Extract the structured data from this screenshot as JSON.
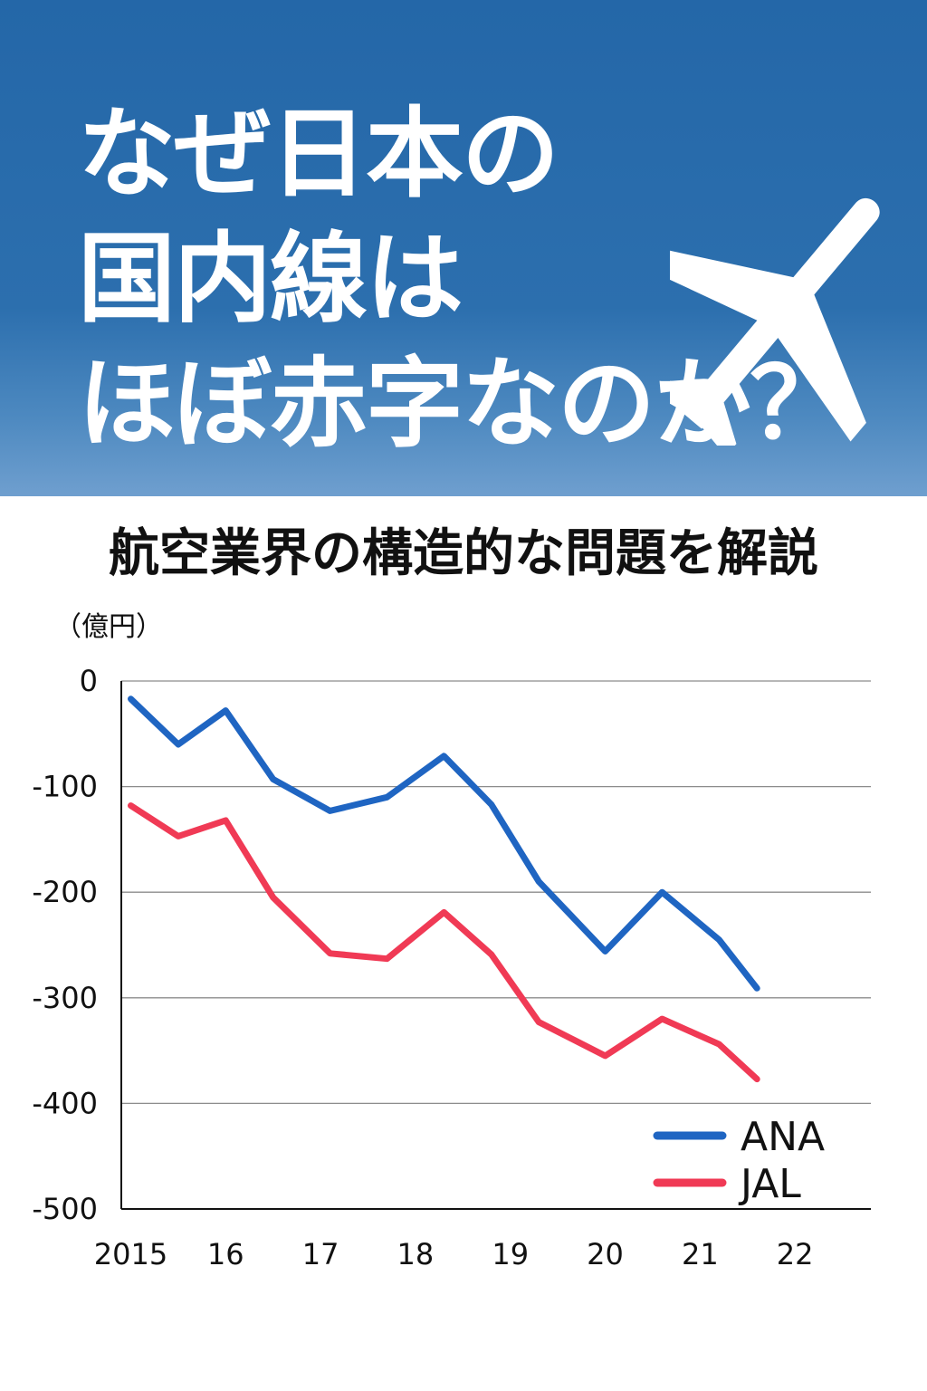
{
  "header": {
    "title_lines": [
      "なぜ日本の",
      "国内線は",
      "ほぼ赤字なのか？"
    ],
    "icon": "airplane-icon"
  },
  "subtitle": "航空業界の構造的な問題を解説",
  "colors": {
    "header_background": "#2a6dad",
    "ana": "#1f65c2",
    "jal": "#f03a55"
  },
  "chart_data": {
    "type": "line",
    "title": "",
    "xlabel": "",
    "ylabel": "（億円）",
    "ylim": [
      -500,
      0
    ],
    "yticks": [
      0,
      -100,
      -200,
      -300,
      -400,
      -500
    ],
    "xlim": [
      2014.9,
      2022.8
    ],
    "xticks": [
      {
        "value": 2015,
        "label": "2015"
      },
      {
        "value": 2016,
        "label": "16"
      },
      {
        "value": 2017,
        "label": "17"
      },
      {
        "value": 2018,
        "label": "18"
      },
      {
        "value": 2019,
        "label": "19"
      },
      {
        "value": 2020,
        "label": "20"
      },
      {
        "value": 2021,
        "label": "21"
      },
      {
        "value": 2022,
        "label": "22"
      }
    ],
    "x": [
      2015.0,
      2015.5,
      2016.0,
      2016.5,
      2017.1,
      2017.7,
      2018.3,
      2018.8,
      2019.3,
      2020.0,
      2020.6,
      2021.2,
      2021.6
    ],
    "series": [
      {
        "name": "ANA",
        "values": [
          -17,
          -60,
          -28,
          -93,
          -123,
          -110,
          -71,
          -117,
          -190,
          -256,
          -200,
          -245,
          -291
        ]
      },
      {
        "name": "JAL",
        "values": [
          -118,
          -147,
          -132,
          -205,
          -258,
          -263,
          -219,
          -259,
          -323,
          -355,
          -320,
          -344,
          -377
        ]
      }
    ],
    "grid": true,
    "legend_position": "bottom-right"
  }
}
